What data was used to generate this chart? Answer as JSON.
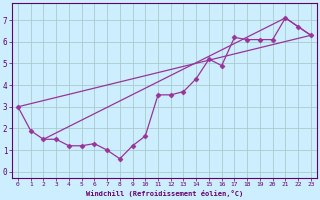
{
  "background_color": "#cceeff",
  "grid_color": "#aacccc",
  "line_color": "#993399",
  "marker_color": "#993399",
  "xlabel": "Windchill (Refroidissement éolien,°C)",
  "xlim": [
    -0.5,
    23.5
  ],
  "ylim": [
    -0.3,
    7.8
  ],
  "xticks": [
    0,
    1,
    2,
    3,
    4,
    5,
    6,
    7,
    8,
    9,
    10,
    11,
    12,
    13,
    14,
    15,
    16,
    17,
    18,
    19,
    20,
    21,
    22,
    23
  ],
  "yticks": [
    0,
    1,
    2,
    3,
    4,
    5,
    6,
    7
  ],
  "series1_x": [
    0,
    1,
    2,
    3,
    4,
    5,
    6,
    7,
    8,
    9,
    10,
    11,
    12,
    13,
    14,
    15,
    16,
    17,
    18,
    19,
    20,
    21,
    22,
    23
  ],
  "series1_y": [
    3.0,
    1.9,
    1.5,
    1.5,
    1.2,
    1.2,
    1.3,
    1.0,
    0.6,
    1.2,
    1.65,
    3.55,
    3.55,
    3.7,
    4.3,
    5.2,
    4.9,
    6.2,
    6.1,
    6.1,
    6.1,
    7.1,
    6.7,
    6.3
  ],
  "trend1_x": [
    0,
    23
  ],
  "trend1_y": [
    3.0,
    6.3
  ],
  "trend2_x": [
    2,
    21,
    23
  ],
  "trend2_y": [
    1.5,
    7.1,
    6.3
  ]
}
